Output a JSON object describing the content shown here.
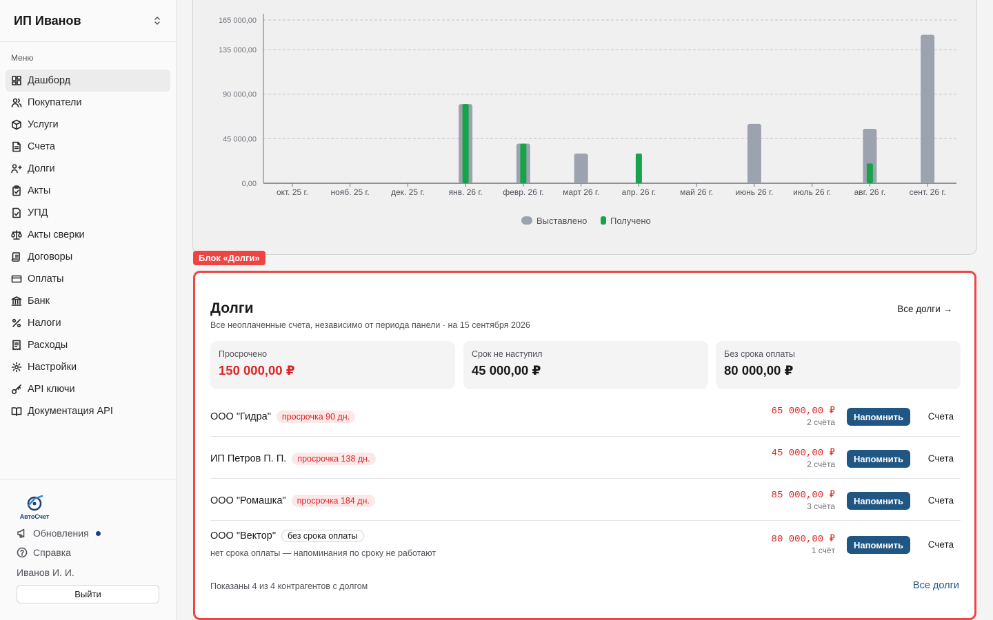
{
  "sidebar": {
    "org_name": "ИП Иванов",
    "menu_label": "Меню",
    "items": [
      {
        "label": "Дашборд",
        "icon": "dashboard-icon"
      },
      {
        "label": "Покупатели",
        "icon": "users-icon"
      },
      {
        "label": "Услуги",
        "icon": "box-icon"
      },
      {
        "label": "Счета",
        "icon": "document-icon"
      },
      {
        "label": "Долги",
        "icon": "debt-icon"
      },
      {
        "label": "Акты",
        "icon": "clipboard-icon"
      },
      {
        "label": "УПД",
        "icon": "file-check-icon"
      },
      {
        "label": "Акты сверки",
        "icon": "scale-icon"
      },
      {
        "label": "Договоры",
        "icon": "scroll-icon"
      },
      {
        "label": "Оплаты",
        "icon": "credit-card-icon"
      },
      {
        "label": "Банк",
        "icon": "bank-icon"
      },
      {
        "label": "Налоги",
        "icon": "percent-icon"
      },
      {
        "label": "Расходы",
        "icon": "receipt-icon"
      },
      {
        "label": "Настройки",
        "icon": "gear-icon"
      },
      {
        "label": "API ключи",
        "icon": "key-icon"
      },
      {
        "label": "Документация API",
        "icon": "book-icon"
      }
    ],
    "logo_text": "АвтоСчет",
    "updates_label": "Обновления",
    "help_label": "Справка",
    "user_name": "Иванов И. И.",
    "logout_label": "Выйти"
  },
  "chart_data": {
    "type": "bar",
    "categories": [
      "окт. 25 г.",
      "нояб. 25 г.",
      "дек. 25 г.",
      "янв. 26 г.",
      "февр. 26 г.",
      "март 26 г.",
      "апр. 26 г.",
      "май 26 г.",
      "июнь 26 г.",
      "июль 26 г.",
      "авг. 26 г.",
      "сент. 26 г."
    ],
    "series": [
      {
        "name": "Выставлено",
        "color": "#9ca3af",
        "values": [
          0,
          0,
          0,
          80000,
          40000,
          30000,
          0,
          0,
          60000,
          0,
          55000,
          150000
        ]
      },
      {
        "name": "Получено",
        "color": "#16a34a",
        "values": [
          0,
          0,
          0,
          80000,
          40000,
          0,
          30000,
          0,
          0,
          0,
          20000,
          0
        ]
      }
    ],
    "y_ticks": [
      "0,00",
      "45 000,00",
      "90 000,00",
      "135 000,00",
      "165 000,00"
    ],
    "y_tick_values": [
      0,
      45000,
      90000,
      135000,
      165000
    ],
    "ylim": [
      0,
      165000
    ],
    "grid": true,
    "legend": "bottom"
  },
  "debts": {
    "block_tag": "Блок «Долги»",
    "title": "Долги",
    "subtitle": "Все неоплаченные счета, независимо от периода панели · на 15 сентября 2026",
    "all_link_top": "Все долги →",
    "stats": [
      {
        "label": "Просрочено",
        "value": "150 000,00 ₽"
      },
      {
        "label": "Срок не наступил",
        "value": "45 000,00 ₽"
      },
      {
        "label": "Без срока оплаты",
        "value": "80 000,00 ₽"
      }
    ],
    "rows": [
      {
        "name": "ООО \"Гидра\"",
        "badge": "просрочка 90 дн.",
        "amount": "65 000,00 ₽",
        "count": "2 счёта",
        "note": ""
      },
      {
        "name": "ИП Петров П. П.",
        "badge": "просрочка 138 дн.",
        "amount": "45 000,00 ₽",
        "count": "2 счёта",
        "note": ""
      },
      {
        "name": "ООО \"Ромашка\"",
        "badge": "просрочка 184 дн.",
        "amount": "85 000,00 ₽",
        "count": "3 счёта",
        "note": ""
      },
      {
        "name": "ООО \"Вектор\"",
        "badge": "без срока оплаты",
        "amount": "80 000,00 ₽",
        "count": "1 счёт",
        "note": "нет срока оплаты — напоминания по сроку не работают"
      }
    ],
    "remind_label": "Напомнить",
    "invoices_label": "Счета",
    "shown_text": "Показаны 4 из 4 контрагентов с долгом",
    "all_link_bottom": "Все долги"
  },
  "colors": {
    "accent": "#1f5684",
    "danger": "#dc2626",
    "highlight": "#ef4444"
  }
}
